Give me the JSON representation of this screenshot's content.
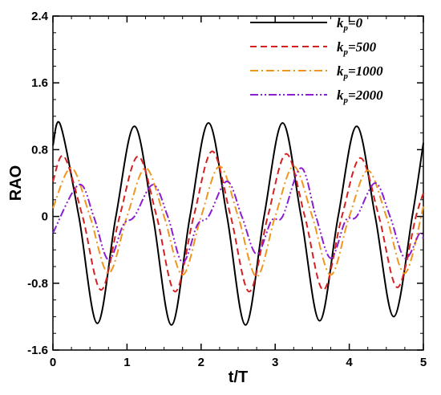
{
  "chart_data": {
    "type": "line",
    "xlabel": "t/T",
    "ylabel": "RAO",
    "xlim": [
      0,
      5
    ],
    "ylim": [
      -1.6,
      2.4
    ],
    "xticks": [
      0,
      1,
      2,
      3,
      4,
      5
    ],
    "xtick_labels": [
      "0",
      "1",
      "2",
      "3",
      "4",
      "5"
    ],
    "yticks": [
      -1.6,
      -0.8,
      0,
      0.8,
      1.6,
      2.4
    ],
    "ytick_labels": [
      "-1.6",
      "-0.8",
      "0",
      "0.8",
      "1.6",
      "2.4"
    ],
    "grid": false,
    "legend_position": "top-right",
    "series": [
      {
        "name": "kp=0",
        "label_main": "k",
        "label_sub": "p",
        "label_rest": "=0",
        "color": "#000000",
        "dash": "solid",
        "x": [
          0,
          0.1,
          0.35,
          0.6,
          0.85,
          1.1,
          1.35,
          1.6,
          1.85,
          2.1,
          2.35,
          2.6,
          2.85,
          3.1,
          3.35,
          3.6,
          3.85,
          4.1,
          4.35,
          4.6,
          4.85,
          5.0
        ],
        "y": [
          0.85,
          1.1,
          0.0,
          -1.28,
          0.0,
          1.08,
          0.0,
          -1.3,
          0.0,
          1.12,
          0.0,
          -1.3,
          0.0,
          1.12,
          0.0,
          -1.25,
          0.0,
          1.08,
          0.0,
          -1.2,
          0.0,
          0.88
        ]
      },
      {
        "name": "kp=500",
        "label_main": "k",
        "label_sub": "p",
        "label_rest": "=500",
        "color": "#d62020",
        "dash": "8,5",
        "x": [
          0,
          0.15,
          0.4,
          0.65,
          0.9,
          1.15,
          1.4,
          1.65,
          1.9,
          2.15,
          2.4,
          2.65,
          2.9,
          3.15,
          3.4,
          3.65,
          3.9,
          4.15,
          4.4,
          4.65,
          4.9,
          5.0
        ],
        "y": [
          0.42,
          0.72,
          0.0,
          -0.88,
          0.0,
          0.72,
          0.0,
          -0.9,
          0.0,
          0.78,
          0.0,
          -0.9,
          0.0,
          0.75,
          0.0,
          -0.88,
          0.0,
          0.7,
          0.0,
          -0.85,
          0.0,
          0.28
        ]
      },
      {
        "name": "kp=1000",
        "label_main": "k",
        "label_sub": "p",
        "label_rest": "=1000",
        "color": "#f0961e",
        "dash": "10,4,2,4",
        "x": [
          0,
          0.25,
          0.5,
          0.75,
          1.0,
          1.25,
          1.5,
          1.75,
          2.0,
          2.25,
          2.5,
          2.75,
          3.0,
          3.25,
          3.5,
          3.75,
          4.0,
          4.25,
          4.5,
          4.75,
          5.0
        ],
        "y": [
          0.1,
          0.58,
          0.0,
          -0.68,
          0.0,
          0.58,
          0.0,
          -0.7,
          0.0,
          0.6,
          0.0,
          -0.72,
          0.0,
          0.6,
          0.0,
          -0.7,
          0.0,
          0.55,
          0.0,
          -0.68,
          0.12
        ]
      },
      {
        "name": "kp=2000",
        "label_main": "k",
        "label_sub": "p",
        "label_rest": "=2000",
        "color": "#8b1ed2",
        "dash": "10,3,2,3,2,3",
        "x": [
          0,
          0.35,
          0.55,
          0.75,
          0.95,
          1.1,
          1.35,
          1.55,
          1.75,
          1.95,
          2.1,
          2.35,
          2.55,
          2.75,
          2.95,
          3.1,
          3.35,
          3.55,
          3.75,
          3.95,
          4.1,
          4.35,
          4.55,
          4.75,
          4.95,
          5.0
        ],
        "y": [
          -0.2,
          0.38,
          0.0,
          -0.52,
          -0.1,
          0.0,
          0.38,
          0.0,
          -0.55,
          -0.1,
          0.0,
          0.42,
          0.0,
          -0.45,
          -0.05,
          0.0,
          0.58,
          0.0,
          -0.5,
          -0.05,
          0.0,
          0.4,
          0.0,
          -0.5,
          -0.2,
          -0.28
        ]
      }
    ]
  }
}
